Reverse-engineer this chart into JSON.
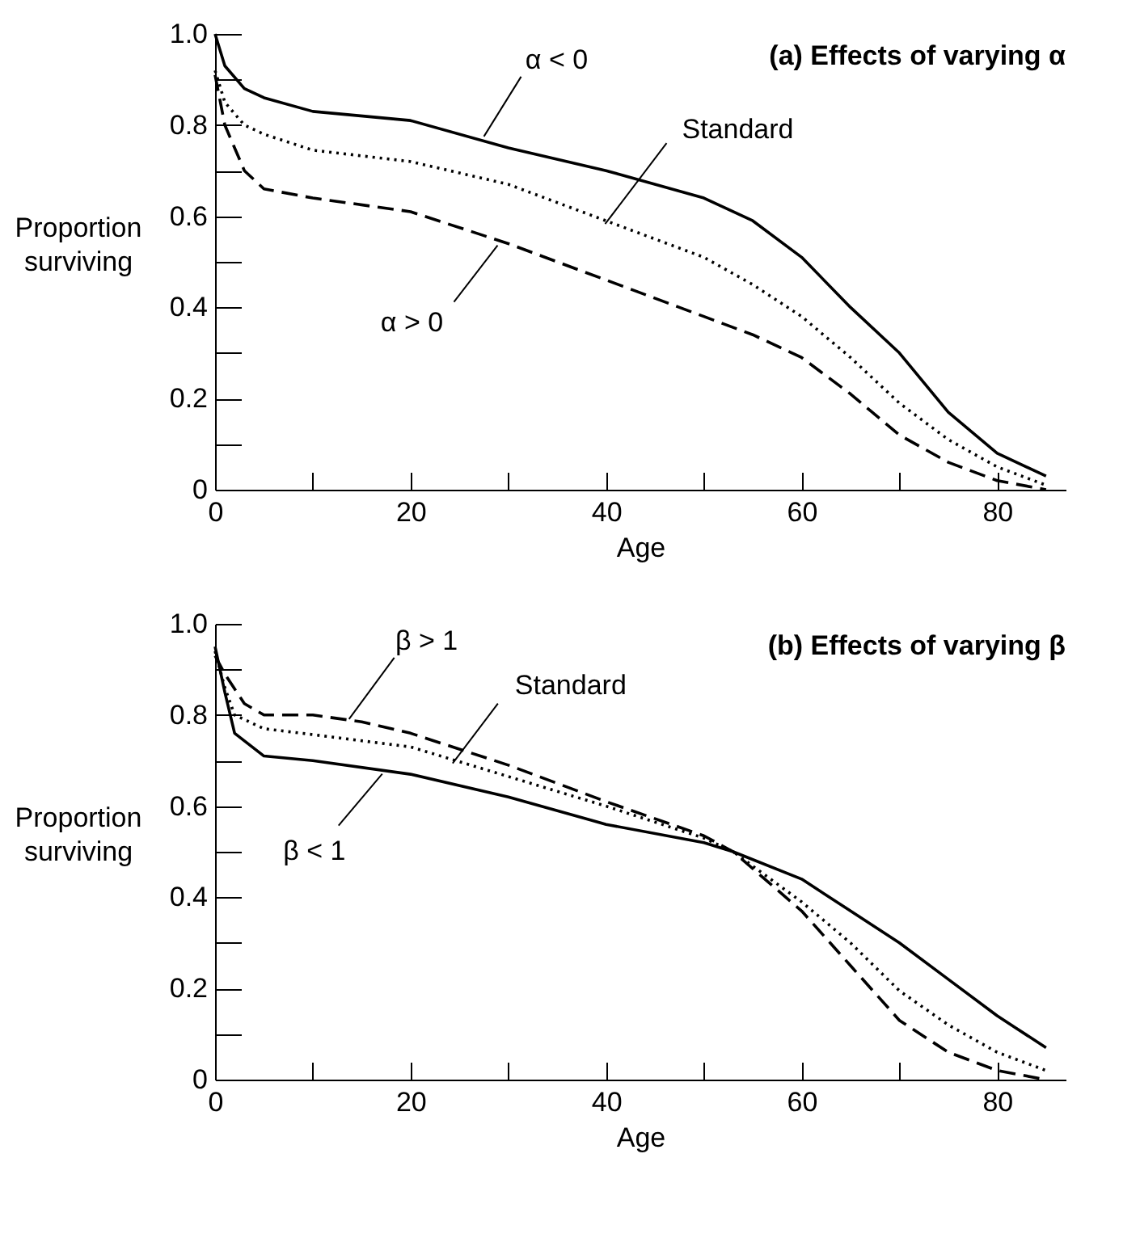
{
  "chart_data": [
    {
      "type": "line",
      "title": "(a) Effects of varying α",
      "xlabel": "Age",
      "ylabel": "Proportion surviving",
      "xlim": [
        0,
        87
      ],
      "ylim": [
        0,
        1
      ],
      "xticks": [
        0,
        {
          "value": 10,
          "label": null
        },
        20,
        {
          "value": 30,
          "label": null
        },
        40,
        {
          "value": 50,
          "label": null
        },
        60,
        {
          "value": 70,
          "label": null
        },
        80
      ],
      "yticks": [
        0,
        {
          "value": 0.1,
          "label": null
        },
        0.2,
        {
          "value": 0.3,
          "label": null
        },
        0.4,
        {
          "value": 0.5,
          "label": null
        },
        0.6,
        {
          "value": 0.7,
          "label": null
        },
        0.8,
        {
          "value": 0.9,
          "label": null
        },
        {
          "value": 1,
          "label": "1.0"
        }
      ],
      "grid": false,
      "marker": "none",
      "series": [
        {
          "color": "#000000",
          "line_style": "solid",
          "x": [
            0,
            1,
            3,
            5,
            10,
            20,
            30,
            40,
            50,
            55,
            60,
            65,
            70,
            75,
            80,
            85
          ],
          "values": [
            1.0,
            0.93,
            0.88,
            0.86,
            0.83,
            0.81,
            0.75,
            0.7,
            0.64,
            0.59,
            0.51,
            0.4,
            0.3,
            0.17,
            0.08,
            0.03
          ]
        },
        {
          "color": "#000000",
          "line_style": "dotted",
          "x": [
            0,
            1,
            3,
            5,
            10,
            20,
            30,
            40,
            50,
            55,
            60,
            65,
            70,
            75,
            80,
            85
          ],
          "values": [
            0.92,
            0.85,
            0.8,
            0.78,
            0.745,
            0.72,
            0.67,
            0.59,
            0.51,
            0.45,
            0.38,
            0.29,
            0.19,
            0.11,
            0.05,
            0.01
          ]
        },
        {
          "color": "#000000",
          "line_style": "dashed",
          "x": [
            0,
            1,
            3,
            5,
            10,
            20,
            30,
            40,
            50,
            55,
            60,
            65,
            70,
            75,
            80,
            85
          ],
          "values": [
            0.91,
            0.8,
            0.7,
            0.66,
            0.64,
            0.61,
            0.54,
            0.46,
            0.38,
            0.34,
            0.29,
            0.21,
            0.12,
            0.06,
            0.02,
            0.0
          ]
        }
      ],
      "annotations": [
        {
          "text": "α < 0",
          "x": 27.5,
          "y": 0.775
        },
        {
          "text": "Standard",
          "x": 39.9,
          "y": 0.583
        },
        {
          "text": "α > 0",
          "x": 28.9,
          "y": 0.536
        }
      ]
    },
    {
      "type": "line",
      "title": "(b) Effects of varying β",
      "xlabel": "Age",
      "ylabel": "Proportion surviving",
      "xlim": [
        0,
        87
      ],
      "ylim": [
        0,
        1
      ],
      "xticks": [
        0,
        {
          "value": 10,
          "label": null
        },
        20,
        {
          "value": 30,
          "label": null
        },
        40,
        {
          "value": 50,
          "label": null
        },
        60,
        {
          "value": 70,
          "label": null
        },
        80
      ],
      "yticks": [
        0,
        {
          "value": 0.1,
          "label": null
        },
        0.2,
        {
          "value": 0.3,
          "label": null
        },
        0.4,
        {
          "value": 0.5,
          "label": null
        },
        0.6,
        {
          "value": 0.7,
          "label": null
        },
        0.8,
        {
          "value": 0.9,
          "label": null
        },
        {
          "value": 1,
          "label": "1.0"
        }
      ],
      "grid": false,
      "marker": "none",
      "series": [
        {
          "color": "#000000",
          "line_style": "solid",
          "x": [
            0,
            1,
            2,
            5,
            10,
            20,
            30,
            40,
            50,
            53,
            60,
            65,
            70,
            75,
            80,
            85
          ],
          "values": [
            0.95,
            0.85,
            0.76,
            0.71,
            0.7,
            0.67,
            0.62,
            0.56,
            0.52,
            0.5,
            0.44,
            0.37,
            0.3,
            0.22,
            0.14,
            0.07
          ]
        },
        {
          "color": "#000000",
          "line_style": "dotted",
          "x": [
            0,
            1,
            2,
            5,
            10,
            20,
            30,
            40,
            50,
            53,
            60,
            65,
            70,
            75,
            80,
            85
          ],
          "values": [
            0.94,
            0.86,
            0.8,
            0.77,
            0.757,
            0.73,
            0.665,
            0.6,
            0.53,
            0.5,
            0.39,
            0.3,
            0.195,
            0.12,
            0.06,
            0.02
          ]
        },
        {
          "color": "#000000",
          "line_style": "dashed",
          "x": [
            0,
            1,
            3,
            5,
            10,
            15,
            20,
            30,
            40,
            50,
            53,
            60,
            65,
            70,
            75,
            80,
            85
          ],
          "values": [
            0.93,
            0.89,
            0.825,
            0.8,
            0.8,
            0.785,
            0.76,
            0.69,
            0.61,
            0.535,
            0.5,
            0.37,
            0.25,
            0.13,
            0.06,
            0.02,
            0.0
          ]
        }
      ],
      "annotations": [
        {
          "text": "β > 1",
          "x": 13.7,
          "y": 0.791
        },
        {
          "text": "Standard",
          "x": 24.3,
          "y": 0.694
        },
        {
          "text": "β < 1",
          "x": 17.1,
          "y": 0.671
        }
      ]
    }
  ]
}
